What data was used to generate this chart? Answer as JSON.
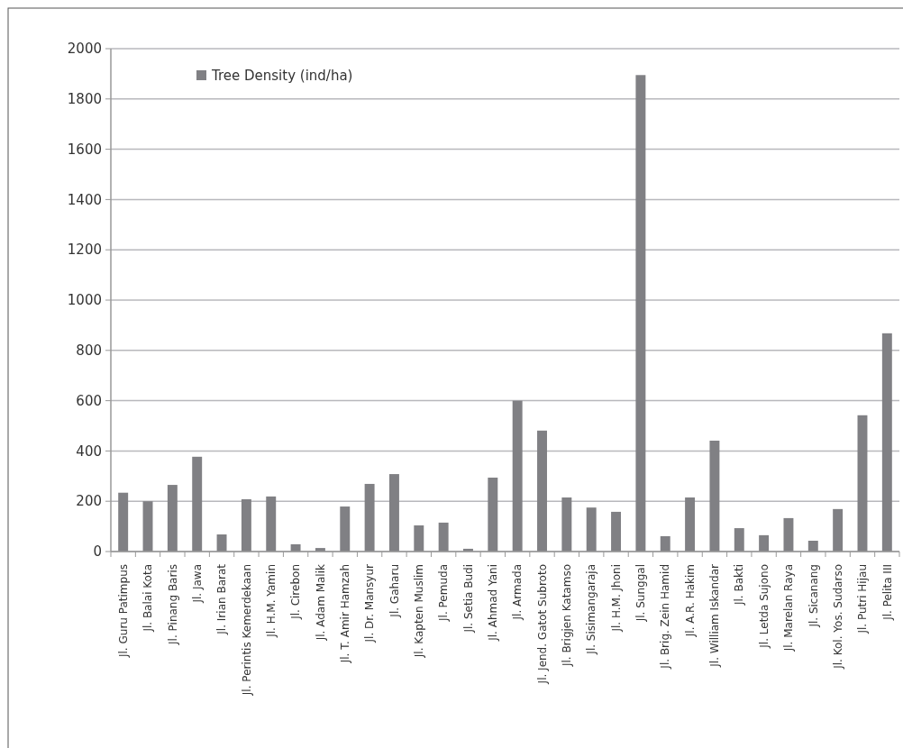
{
  "chart_data": {
    "type": "bar",
    "categories": [
      "Jl. Guru Patimpus",
      "Jl. Balai Kota",
      "Jl. Pinang Baris",
      "Jl. Jawa",
      "Jl. Irian Barat",
      "Jl. Perintis Kemerdekaan",
      "Jl. H.M. Yamin",
      "Jl. Cirebon",
      "Jl. Adam Malik",
      "Jl. T. Amir Hamzah",
      "Jl. Dr. Mansyur",
      "Jl. Gaharu",
      "Jl. Kapten Muslim",
      "Jl. Pemuda",
      "Jl. Setia Budi",
      "Jl. Ahmad Yani",
      "Jl. Armada",
      "Jl. Jend. Gatot Subroto",
      "Jl. Brigjen Katamso",
      "Jl. Sisimangaraja",
      "Jl. H.M. Jhoni",
      "Jl. Sunggal",
      "Jl. Brig. Zein Hamid",
      "Jl. A.R. Hakim",
      "Jl. William Iskandar",
      "Jl. Bakti",
      "Jl. Letda Sujono",
      "Jl. Marelan Raya",
      "Jl. Sicanang",
      "Jl. Kol. Yos. Sudarso",
      "Jl. Putri Hijau",
      "Jl. Pelita III"
    ],
    "series": [
      {
        "name": "Tree Density (ind/ha)",
        "color": "#808084",
        "values": [
          234,
          200,
          265,
          377,
          68,
          208,
          219,
          29,
          14,
          179,
          269,
          308,
          104,
          115,
          11,
          294,
          600,
          481,
          215,
          175,
          158,
          1895,
          61,
          215,
          441,
          93,
          65,
          133,
          43,
          169,
          542,
          868
        ]
      }
    ],
    "ylim": [
      0,
      2000
    ],
    "yticks": [
      0,
      200,
      400,
      600,
      800,
      1000,
      1200,
      1400,
      1600,
      1800,
      2000
    ],
    "grid": "y",
    "legend": "top left"
  }
}
